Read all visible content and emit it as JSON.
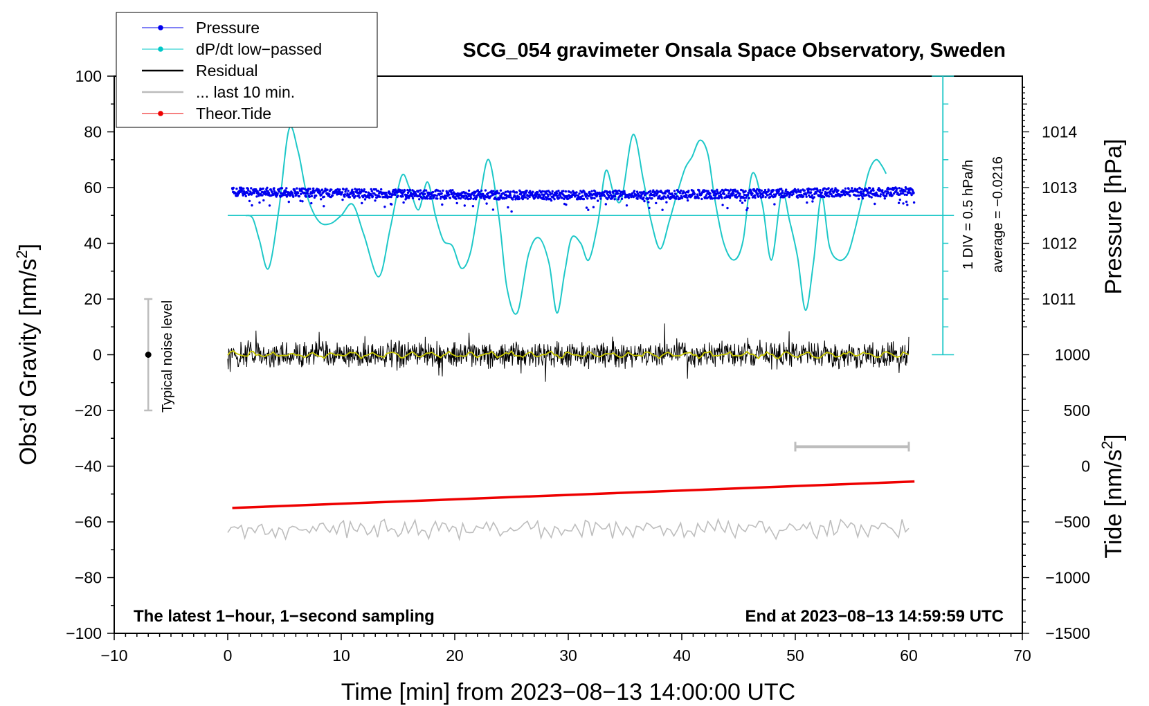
{
  "chart_data": {
    "type": "line",
    "title": "SCG_054 gravimeter Onsala Space Observatory, Sweden",
    "xlabel": "Time [min] from 2023−08−13 14:00:00 UTC",
    "ylabel_left": "Obs’d Gravity [nm/s",
    "ylabel_left_sup": "2",
    "ylabel_left_end": "]",
    "ylabel_right_pressure": "Pressure [hPa]",
    "ylabel_right_tide": "Tide [nm/s",
    "ylabel_right_tide_sup": "2",
    "ylabel_right_tide_end": "]",
    "xlim": [
      -10,
      70
    ],
    "ylim": [
      -100,
      100
    ],
    "x_ticks": [
      {
        "v": -10,
        "label": "−10"
      },
      {
        "v": 0,
        "label": "0"
      },
      {
        "v": 10,
        "label": "10"
      },
      {
        "v": 20,
        "label": "20"
      },
      {
        "v": 30,
        "label": "30"
      },
      {
        "v": 40,
        "label": "40"
      },
      {
        "v": 50,
        "label": "50"
      },
      {
        "v": 60,
        "label": "60"
      },
      {
        "v": 70,
        "label": "70"
      }
    ],
    "y_ticks": [
      {
        "v": 100,
        "label": "100"
      },
      {
        "v": 80,
        "label": "80"
      },
      {
        "v": 60,
        "label": "60"
      },
      {
        "v": 40,
        "label": "40"
      },
      {
        "v": 20,
        "label": "20"
      },
      {
        "v": 0,
        "label": "0"
      },
      {
        "v": -20,
        "label": "−20"
      },
      {
        "v": -40,
        "label": "−40"
      },
      {
        "v": -60,
        "label": "−60"
      },
      {
        "v": -80,
        "label": "−80"
      },
      {
        "v": -100,
        "label": "−100"
      }
    ],
    "pressure_axis": {
      "unit": "hPa",
      "map": {
        "p_at_y60": 1013,
        "per_hpa_nm": 20
      },
      "ticks": [
        {
          "v": 1014,
          "label": "1014"
        },
        {
          "v": 1013,
          "label": "1013"
        },
        {
          "v": 1012,
          "label": "1012"
        },
        {
          "v": 1011,
          "label": "1011"
        }
      ]
    },
    "tide_axis": {
      "unit": "nm/s2",
      "map": {
        "tide_at_y0": 1000,
        "tide_at_ym100": -1500
      },
      "ticks": [
        {
          "v": 1000,
          "label": "1000"
        },
        {
          "v": 500,
          "label": "500"
        },
        {
          "v": 0,
          "label": "0"
        },
        {
          "v": -500,
          "label": "−500"
        },
        {
          "v": -1000,
          "label": "−1000"
        },
        {
          "v": -1500,
          "label": "−1500"
        }
      ]
    },
    "dpdt_scale": {
      "label1": "1 DIV = 0.5 hPa/h",
      "label2": "average = −0.0216",
      "x": 63,
      "y_from": 0,
      "y_to": 100,
      "div_step": 10,
      "baseline_y": 50,
      "baseline_x": [
        0,
        63
      ]
    },
    "noise_bar": {
      "label": "Typical noise level",
      "x": -7,
      "y_from": -20,
      "y_to": 20,
      "center": 0
    },
    "last10_bar": {
      "x_from": 50,
      "x_to": 60,
      "y": -33
    },
    "footer_left": "The latest 1−hour, 1−second sampling",
    "footer_right": "End at 2023−08−13 14:59:59 UTC",
    "legend": [
      {
        "label": "Pressure",
        "color": "#0000ee",
        "style": "line-dot"
      },
      {
        "label": "dP/dt low−passed",
        "color": "#00c8c8",
        "style": "line-dot"
      },
      {
        "label": "Residual",
        "color": "#000000",
        "style": "line"
      },
      {
        "label": "... last 10 min.",
        "color": "#bbbbbb",
        "style": "line"
      },
      {
        "label": "Theor.Tide",
        "color": "#ee0000",
        "style": "line-dot"
      }
    ],
    "series": [
      {
        "name": "dP/dt low−passed",
        "color": "#1ec8c8",
        "x": [
          1.6,
          2.2,
          2.8,
          3.6,
          4.5,
          5.4,
          6.2,
          7.0,
          8.0,
          9.0,
          10.0,
          11.0,
          12.0,
          13.3,
          14.3,
          15.3,
          16.0,
          16.8,
          17.6,
          18.3,
          19.0,
          19.8,
          20.6,
          21.4,
          22.2,
          23.0,
          23.9,
          24.6,
          25.5,
          26.5,
          27.4,
          28.3,
          29.0,
          29.7,
          30.3,
          31.1,
          31.8,
          32.6,
          33.3,
          34.0,
          34.7,
          35.7,
          36.6,
          37.3,
          38.1,
          38.9,
          39.6,
          40.3,
          40.9,
          41.6,
          42.3,
          42.9,
          43.7,
          44.6,
          45.4,
          46.2,
          47.1,
          47.9,
          48.8,
          49.5,
          50.2,
          50.9,
          51.6,
          52.3,
          53.0,
          53.8,
          54.6,
          55.2,
          55.9,
          56.5,
          57.1,
          57.6,
          58.0
        ],
        "values": [
          50,
          49,
          41,
          31,
          52,
          81,
          73,
          57,
          48,
          47,
          50,
          54,
          43,
          28,
          45,
          64,
          60,
          52,
          62,
          50,
          41,
          39,
          31,
          37,
          56,
          70,
          49,
          24,
          15,
          36,
          42,
          33,
          15,
          30,
          42,
          40,
          34,
          47,
          66,
          58,
          56,
          79,
          63,
          48,
          38,
          48,
          58,
          67,
          71,
          77,
          72,
          56,
          40,
          34,
          41,
          65,
          54,
          34,
          58,
          48,
          35,
          16,
          33,
          57,
          39,
          34,
          36,
          44,
          56,
          66,
          70,
          68,
          65
        ]
      },
      {
        "name": "Pressure",
        "color": "#0000ee",
        "x_range": [
          0.4,
          60.5
        ],
        "center_y": 58,
        "spread": 1.6
      },
      {
        "name": "Residual",
        "color": "#000000",
        "x_range": [
          0,
          60
        ],
        "center_y": 0
      },
      {
        "name": "Residual smoothed",
        "color": "#c8c800",
        "x_range": [
          0,
          60
        ],
        "center_y": 0
      },
      {
        "name": "... last 10 min.",
        "color": "#bdbdbd",
        "x_range": [
          0,
          60
        ],
        "center_y": -62.5
      },
      {
        "name": "Theor.Tide",
        "color": "#ee0000",
        "x": [
          0.4,
          60.5
        ],
        "values": [
          -55,
          -45.5
        ]
      }
    ]
  }
}
